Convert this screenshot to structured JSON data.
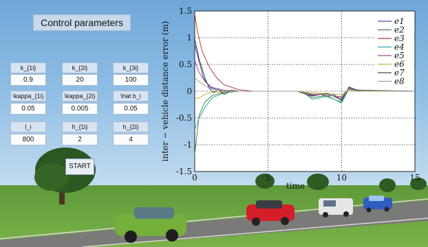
{
  "panel": {
    "title": "Control parameters",
    "rows": [
      {
        "labels": [
          "k_{1i}",
          "k_{2i}",
          "k_{3i}"
        ],
        "values": [
          "0.9",
          "20",
          "100"
        ]
      },
      {
        "labels": [
          "\\kappa_{1i}",
          "\\kappa_{2i}",
          "\\hat b_i"
        ],
        "values": [
          "0.05",
          "0.005",
          "0.05"
        ]
      },
      {
        "labels": [
          "l_i",
          "h_{1i}",
          "h_{2i}"
        ],
        "values": [
          "800",
          "2",
          "4"
        ]
      }
    ],
    "start_label": "START"
  },
  "chart_data": {
    "type": "line",
    "title": "",
    "xlabel": "time",
    "ylabel": "inter − vehicle distance error (m)",
    "xlim": [
      0,
      15
    ],
    "ylim": [
      -1.5,
      1.5
    ],
    "xticks": [
      "0",
      "5",
      "10",
      "15"
    ],
    "yticks": [
      "1.5",
      "1",
      "0.5",
      "0",
      "-0.5",
      "-1",
      "-1.5"
    ],
    "grid": "dotted",
    "legend": "top-right",
    "series": [
      {
        "name": "e1",
        "color": "#3a4fa8",
        "x": [
          0,
          0.3,
          0.6,
          1,
          1.5,
          2,
          3,
          4,
          5,
          6,
          7,
          7.5,
          8,
          8.5,
          9,
          9.5,
          10,
          10.5,
          11,
          12,
          15
        ],
        "y": [
          0.88,
          0.55,
          0.25,
          0.08,
          0.03,
          0.01,
          0,
          0,
          0,
          0,
          0,
          -0.03,
          -0.08,
          -0.05,
          -0.1,
          -0.06,
          -0.18,
          0.08,
          0.03,
          0,
          0
        ]
      },
      {
        "name": "e2",
        "color": "#3f8a3f",
        "x": [
          0,
          0.3,
          0.7,
          1.2,
          2,
          3,
          4,
          5,
          7,
          7.5,
          8,
          9,
          10,
          10.5,
          11,
          15
        ],
        "y": [
          -1.18,
          -0.45,
          -0.2,
          -0.08,
          -0.02,
          0,
          0,
          0,
          0,
          -0.04,
          -0.12,
          -0.08,
          -0.22,
          0.04,
          0.01,
          0
        ]
      },
      {
        "name": "e3",
        "color": "#b33b3b",
        "x": [
          0,
          0.2,
          0.5,
          1,
          1.5,
          2,
          3,
          4,
          5,
          7,
          7.5,
          8,
          9,
          10,
          10.5,
          11,
          15
        ],
        "y": [
          1.45,
          1.1,
          0.75,
          0.45,
          0.25,
          0.12,
          0.03,
          0,
          0,
          0,
          -0.03,
          -0.06,
          -0.04,
          -0.15,
          0.05,
          0.01,
          0
        ]
      },
      {
        "name": "e4",
        "color": "#36a8a8",
        "x": [
          0,
          0.3,
          0.7,
          1.2,
          2,
          3,
          4,
          5,
          7,
          7.5,
          8,
          9,
          10,
          10.5,
          11,
          15
        ],
        "y": [
          -0.72,
          -0.5,
          -0.3,
          -0.12,
          -0.03,
          0,
          0,
          0,
          0,
          -0.04,
          -0.15,
          -0.1,
          -0.2,
          0.06,
          0.02,
          0
        ]
      },
      {
        "name": "e5",
        "color": "#a148a6",
        "x": [
          0,
          0.3,
          0.7,
          1.2,
          2,
          3,
          4,
          5,
          7,
          7.5,
          8,
          9,
          10,
          10.5,
          11,
          15
        ],
        "y": [
          0.58,
          0.35,
          0.18,
          0.07,
          0.02,
          0,
          0,
          0,
          0,
          -0.02,
          -0.07,
          -0.05,
          -0.12,
          0.04,
          0.01,
          0
        ]
      },
      {
        "name": "e6",
        "color": "#c7b13a",
        "x": [
          0,
          0.3,
          0.7,
          1,
          2,
          3,
          4,
          5,
          7,
          8,
          10,
          10.5,
          11,
          15
        ],
        "y": [
          -0.14,
          -0.12,
          -0.06,
          -0.03,
          -0.01,
          0,
          0,
          0,
          0,
          -0.03,
          -0.06,
          0.02,
          0,
          0
        ]
      },
      {
        "name": "e7",
        "color": "#444444",
        "x": [
          0,
          0.3,
          0.7,
          1,
          1.3,
          1.6,
          2,
          2.5,
          3,
          4,
          5,
          7,
          7.5,
          8,
          9,
          10,
          10.5,
          11,
          15
        ],
        "y": [
          0.98,
          0.6,
          0.25,
          0.05,
          -0.02,
          0.04,
          -0.06,
          0.02,
          0,
          0,
          0,
          0,
          -0.05,
          -0.09,
          -0.04,
          -0.16,
          0.07,
          0.02,
          0
        ]
      },
      {
        "name": "e8",
        "color": "#9a9a9a",
        "x": [
          0,
          0.3,
          0.7,
          1.2,
          2,
          3,
          4,
          5,
          7,
          8,
          10,
          10.5,
          11,
          15
        ],
        "y": [
          0.25,
          0.18,
          0.1,
          0.04,
          0.01,
          0,
          0,
          0,
          0,
          -0.05,
          -0.1,
          0.05,
          0.01,
          0
        ]
      }
    ]
  }
}
